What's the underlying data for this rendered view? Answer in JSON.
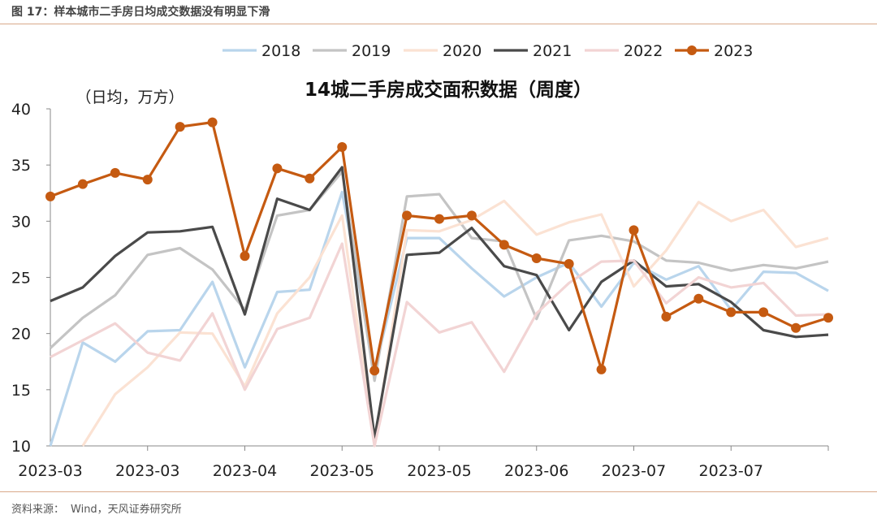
{
  "header": {
    "figure_label": "图 17：",
    "figure_title": "样本城市二手房日均成交数据没有明显下滑"
  },
  "source": {
    "label": "资料来源：",
    "text": "Wind，天风证券研究所"
  },
  "chart_data": {
    "type": "line",
    "title": "14城二手房成交面积数据（周度）",
    "ylabel": "（日均，万方）",
    "xlabel": "",
    "ylim": [
      10,
      40
    ],
    "yticks": [
      10,
      15,
      20,
      25,
      30,
      35,
      40
    ],
    "xtick_labels": [
      "2023-03",
      "2023-03",
      "2023-04",
      "2023-05",
      "2023-05",
      "2023-06",
      "2023-07",
      "2023-07"
    ],
    "legend_position": "top",
    "grid": false,
    "series": [
      {
        "name": "2018",
        "color": "#b9d5ec",
        "marker": false,
        "values": [
          10.0,
          19.2,
          17.5,
          20.2,
          20.3,
          24.6,
          17.0,
          23.7,
          23.9,
          32.6,
          16.7,
          28.5,
          28.5,
          25.8,
          23.3,
          25.0,
          26.3,
          22.4,
          26.3,
          24.8,
          26.0,
          22.1,
          25.5,
          25.4,
          23.8
        ]
      },
      {
        "name": "2019",
        "color": "#c4c4c4",
        "marker": false,
        "values": [
          18.7,
          21.4,
          23.4,
          27.0,
          27.6,
          25.7,
          22.1,
          30.5,
          31.0,
          34.4,
          15.8,
          32.2,
          32.4,
          28.5,
          28.2,
          21.3,
          28.3,
          28.7,
          28.2,
          26.5,
          26.3,
          25.6,
          26.1,
          25.8,
          26.4
        ]
      },
      {
        "name": "2020",
        "color": "#fbe2d3",
        "marker": false,
        "values": [
          null,
          10.0,
          14.6,
          17.0,
          20.1,
          20.0,
          15.3,
          21.8,
          25.0,
          30.5,
          10.0,
          29.2,
          29.1,
          30.1,
          31.8,
          28.8,
          29.9,
          30.6,
          24.2,
          27.4,
          31.7,
          30.0,
          31.0,
          27.7,
          28.5
        ]
      },
      {
        "name": "2021",
        "color": "#4a4a4a",
        "marker": false,
        "values": [
          22.9,
          24.1,
          26.9,
          29.0,
          29.1,
          29.5,
          21.7,
          32.0,
          31.0,
          34.8,
          10.7,
          27.0,
          27.2,
          29.4,
          26.0,
          25.2,
          20.3,
          24.6,
          26.5,
          24.2,
          24.4,
          22.8,
          20.3,
          19.7,
          19.9
        ]
      },
      {
        "name": "2022",
        "color": "#f2d4d4",
        "marker": false,
        "values": [
          17.9,
          19.4,
          20.9,
          18.3,
          17.6,
          21.8,
          15.0,
          20.4,
          21.4,
          28.0,
          10.0,
          22.8,
          20.1,
          21.0,
          16.6,
          21.8,
          24.5,
          26.4,
          26.5,
          22.7,
          25.0,
          24.1,
          24.5,
          21.6,
          21.7
        ]
      },
      {
        "name": "2023",
        "color": "#c55a11",
        "marker": true,
        "values": [
          32.2,
          33.3,
          34.3,
          33.7,
          38.4,
          38.8,
          26.9,
          34.7,
          33.8,
          36.6,
          16.7,
          30.5,
          30.2,
          30.5,
          27.9,
          26.7,
          26.2,
          16.8,
          29.2,
          21.5,
          23.1,
          21.9,
          21.9,
          20.5,
          21.4
        ]
      }
    ]
  }
}
